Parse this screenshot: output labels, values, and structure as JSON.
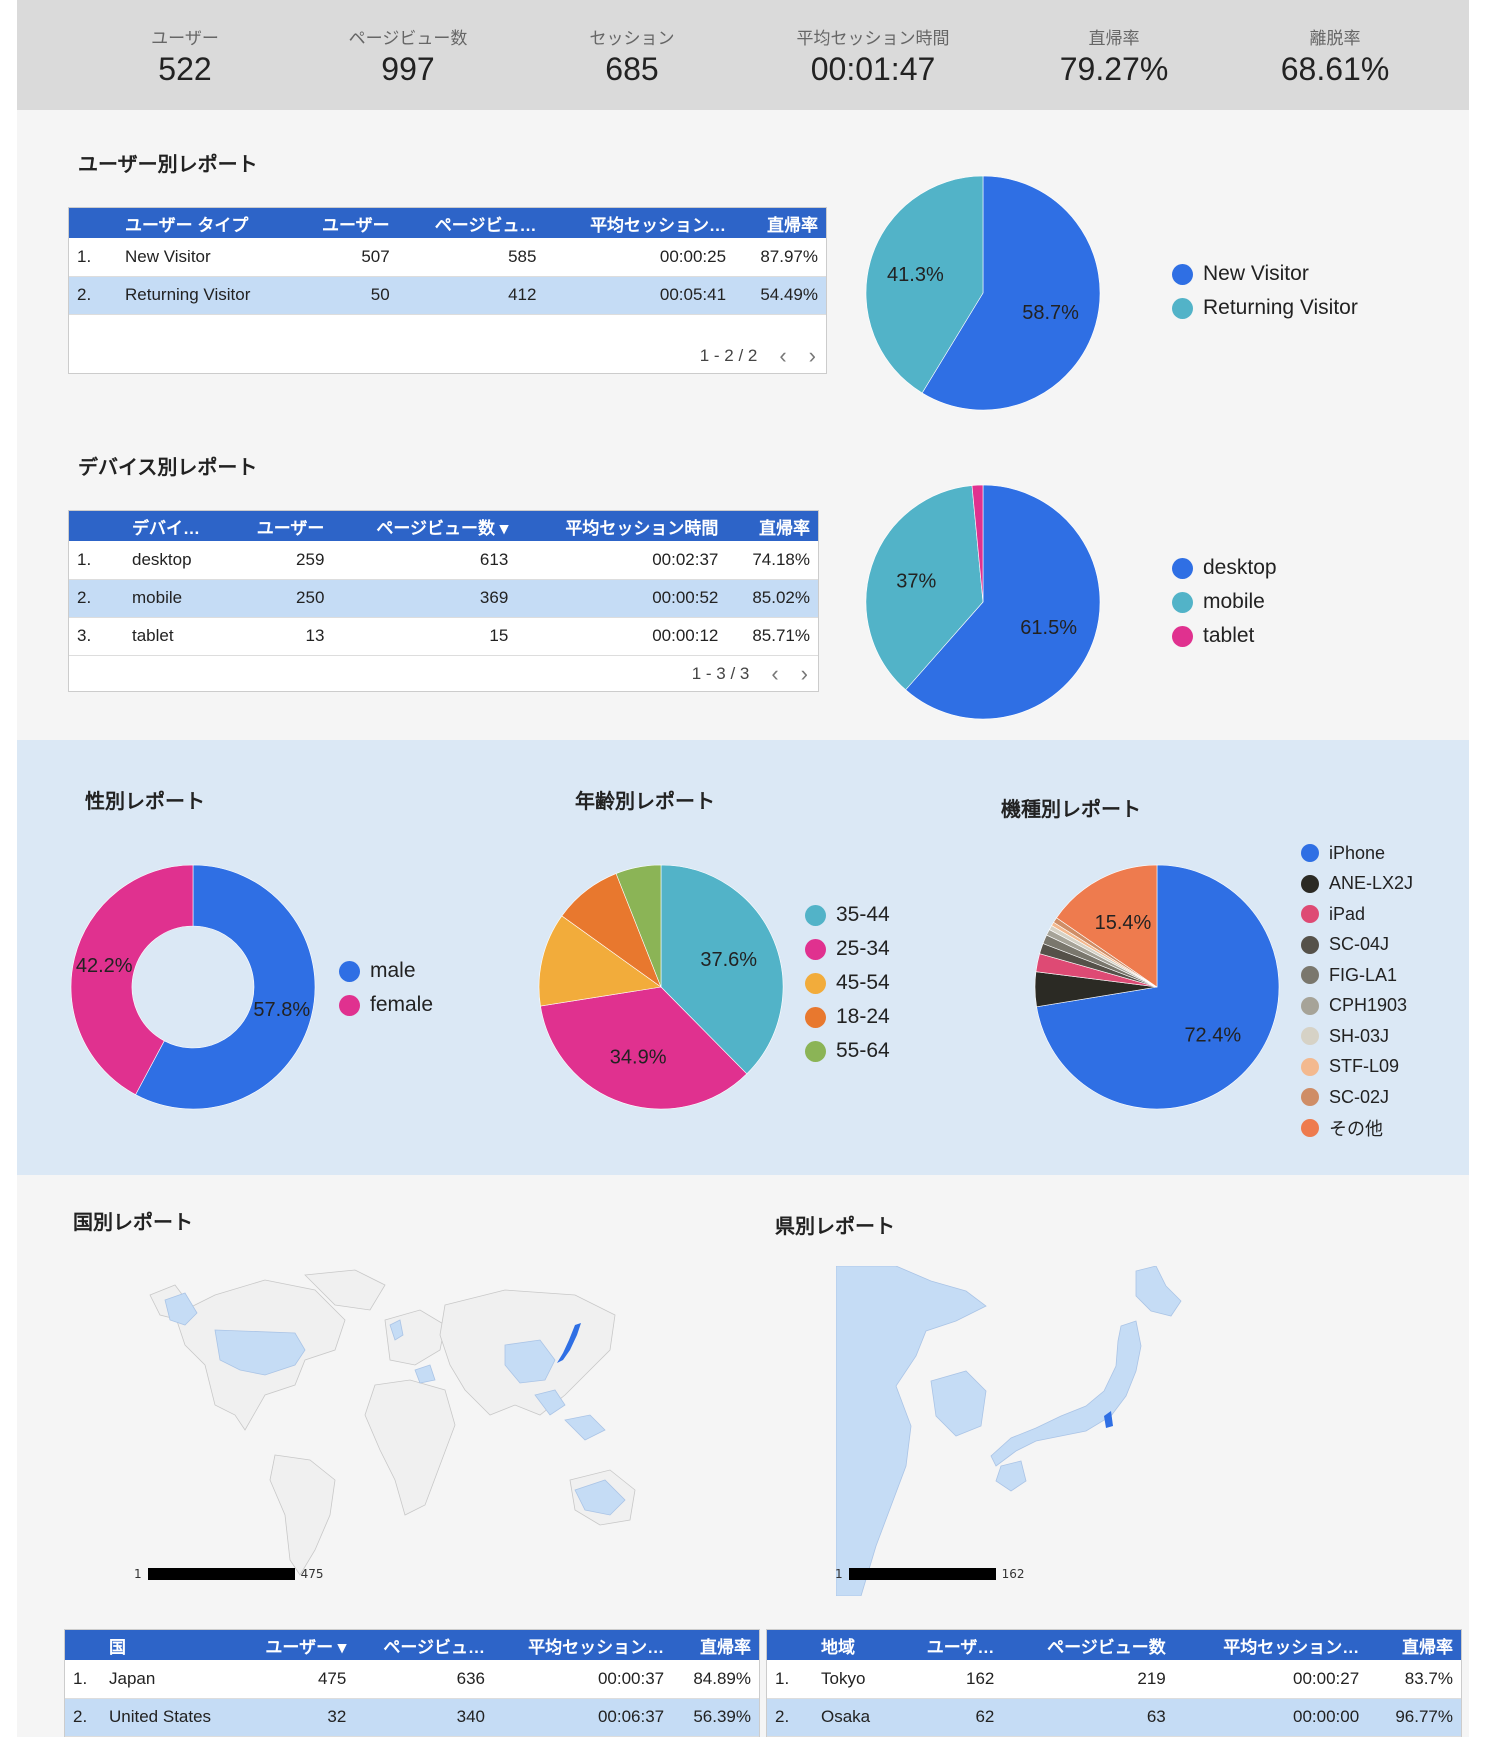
{
  "kpis": [
    {
      "label": "ユーザー",
      "value": "522"
    },
    {
      "label": "ページビュー数",
      "value": "997"
    },
    {
      "label": "セッション",
      "value": "685"
    },
    {
      "label": "平均セッション時間",
      "value": "00:01:47"
    },
    {
      "label": "直帰率",
      "value": "79.27%"
    },
    {
      "label": "離脱率",
      "value": "68.61%"
    }
  ],
  "user_report": {
    "title": "ユーザー別レポート",
    "headers": [
      "ユーザー タイプ",
      "ユーザー",
      "ページビュ…",
      "平均セッション…",
      "直帰率"
    ],
    "rows": [
      [
        "1.",
        "New Visitor",
        "507",
        "585",
        "00:00:25",
        "87.97%"
      ],
      [
        "2.",
        "Returning Visitor",
        "50",
        "412",
        "00:05:41",
        "54.49%"
      ]
    ],
    "pager": "1 - 2 / 2",
    "legend": [
      "New Visitor",
      "Returning Visitor"
    ]
  },
  "device_report": {
    "title": "デバイス別レポート",
    "headers": [
      "デバイ…",
      "ユーザー",
      "ページビュー数 ▾",
      "平均セッション時間",
      "直帰率"
    ],
    "rows": [
      [
        "1.",
        "desktop",
        "259",
        "613",
        "00:02:37",
        "74.18%"
      ],
      [
        "2.",
        "mobile",
        "250",
        "369",
        "00:00:52",
        "85.02%"
      ],
      [
        "3.",
        "tablet",
        "13",
        "15",
        "00:00:12",
        "85.71%"
      ]
    ],
    "pager": "1 - 3 / 3",
    "legend": [
      "desktop",
      "mobile",
      "tablet"
    ]
  },
  "gender_title": "性別レポート",
  "age_title": "年齢別レポート",
  "model_title": "機種別レポート",
  "gender_legend": [
    "male",
    "female"
  ],
  "age_legend": [
    "35-44",
    "25-34",
    "45-54",
    "18-24",
    "55-64"
  ],
  "model_legend": [
    "iPhone",
    "ANE-LX2J",
    "iPad",
    "SC-04J",
    "FIG-LA1",
    "CPH1903",
    "SH-03J",
    "STF-L09",
    "SC-02J",
    "その他"
  ],
  "country_report": {
    "title": "国別レポート",
    "scale_min": "1",
    "scale_max": "475",
    "headers": [
      "国",
      "ユーザー ▾",
      "ページビュ…",
      "平均セッション…",
      "直帰率"
    ],
    "rows": [
      [
        "1.",
        "Japan",
        "475",
        "636",
        "00:00:37",
        "84.89%"
      ],
      [
        "2.",
        "United States",
        "32",
        "340",
        "00:06:37",
        "56.39%"
      ]
    ]
  },
  "pref_report": {
    "title": "県別レポート",
    "scale_min": "1",
    "scale_max": "162",
    "headers": [
      "地域",
      "ユーザ…",
      "ページビュー数",
      "平均セッション…",
      "直帰率"
    ],
    "rows": [
      [
        "1.",
        "Tokyo",
        "162",
        "219",
        "00:00:27",
        "83.7%"
      ],
      [
        "2.",
        "Osaka",
        "62",
        "63",
        "00:00:00",
        "96.77%"
      ]
    ]
  },
  "chart_data": [
    {
      "type": "pie",
      "title": "",
      "categories": [
        "New Visitor",
        "Returning Visitor"
      ],
      "values": [
        58.7,
        41.3
      ],
      "labels": [
        "58.7%",
        "41.3%"
      ],
      "colors": [
        "#2f6fe4",
        "#52b3c8"
      ]
    },
    {
      "type": "pie",
      "title": "",
      "categories": [
        "desktop",
        "mobile",
        "tablet"
      ],
      "values": [
        61.5,
        37,
        1.5
      ],
      "labels": [
        "61.5%",
        "37%",
        ""
      ],
      "colors": [
        "#2f6fe4",
        "#52b3c8",
        "#e0318f"
      ]
    },
    {
      "type": "pie",
      "title": "",
      "donut": true,
      "categories": [
        "male",
        "female"
      ],
      "values": [
        57.8,
        42.2
      ],
      "labels": [
        "57.8%",
        "42.2%"
      ],
      "colors": [
        "#2f6fe4",
        "#e0318f"
      ]
    },
    {
      "type": "pie",
      "title": "",
      "categories": [
        "35-44",
        "25-34",
        "45-54",
        "18-24",
        "55-64"
      ],
      "values": [
        37.6,
        34.9,
        12.4,
        9.1,
        6.0
      ],
      "labels": [
        "37.6%",
        "34.9%",
        "",
        "",
        ""
      ],
      "colors": [
        "#52b3c8",
        "#e0318f",
        "#f2ac3b",
        "#e8782e",
        "#8bb456"
      ]
    },
    {
      "type": "pie",
      "title": "",
      "categories": [
        "iPhone",
        "ANE-LX2J",
        "iPad",
        "SC-04J",
        "FIG-LA1",
        "CPH1903",
        "SH-03J",
        "STF-L09",
        "SC-02J",
        "その他"
      ],
      "values": [
        72.4,
        4.6,
        2.4,
        1.4,
        1.2,
        0.8,
        0.6,
        0.5,
        0.7,
        15.4
      ],
      "labels": [
        "72.4%",
        "",
        "",
        "",
        "",
        "",
        "",
        "",
        "",
        "15.4%"
      ],
      "colors": [
        "#2f6fe4",
        "#2b2a24",
        "#de4a74",
        "#555149",
        "#7a776d",
        "#a6a398",
        "#d6d2c6",
        "#f3b98f",
        "#cf8d66",
        "#ee7b4e"
      ]
    }
  ]
}
